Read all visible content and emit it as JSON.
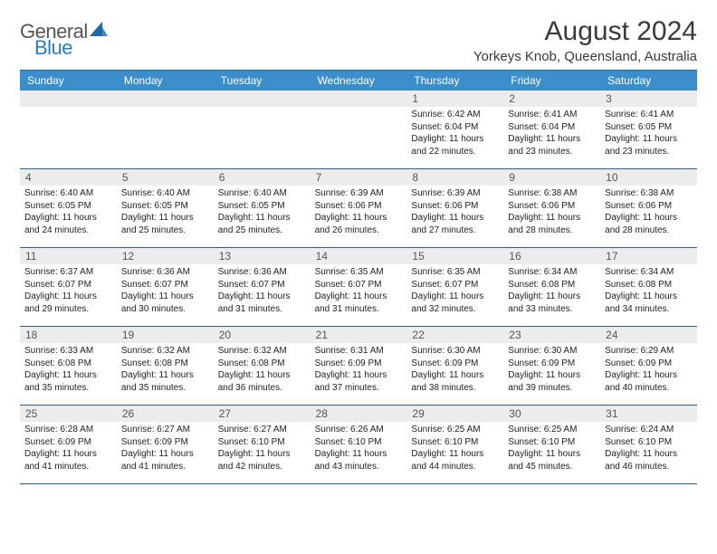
{
  "brand": {
    "word1": "General",
    "word2": "Blue"
  },
  "title": "August 2024",
  "location": "Yorkeys Knob, Queensland, Australia",
  "colors": {
    "accent": "#3b8dcb",
    "border": "#2d5f8b",
    "daynum_bg": "#ececec",
    "text": "#222222",
    "logo_blue": "#2a7ac0"
  },
  "typography": {
    "title_fontsize": 30,
    "location_fontsize": 15,
    "dayhead_fontsize": 12,
    "cell_fontsize": 10
  },
  "day_labels": [
    "Sunday",
    "Monday",
    "Tuesday",
    "Wednesday",
    "Thursday",
    "Friday",
    "Saturday"
  ],
  "weeks": [
    [
      {
        "day": ""
      },
      {
        "day": ""
      },
      {
        "day": ""
      },
      {
        "day": ""
      },
      {
        "day": "1",
        "sunrise": "Sunrise: 6:42 AM",
        "sunset": "Sunset: 6:04 PM",
        "dl1": "Daylight: 11 hours",
        "dl2": "and 22 minutes."
      },
      {
        "day": "2",
        "sunrise": "Sunrise: 6:41 AM",
        "sunset": "Sunset: 6:04 PM",
        "dl1": "Daylight: 11 hours",
        "dl2": "and 23 minutes."
      },
      {
        "day": "3",
        "sunrise": "Sunrise: 6:41 AM",
        "sunset": "Sunset: 6:05 PM",
        "dl1": "Daylight: 11 hours",
        "dl2": "and 23 minutes."
      }
    ],
    [
      {
        "day": "4",
        "sunrise": "Sunrise: 6:40 AM",
        "sunset": "Sunset: 6:05 PM",
        "dl1": "Daylight: 11 hours",
        "dl2": "and 24 minutes."
      },
      {
        "day": "5",
        "sunrise": "Sunrise: 6:40 AM",
        "sunset": "Sunset: 6:05 PM",
        "dl1": "Daylight: 11 hours",
        "dl2": "and 25 minutes."
      },
      {
        "day": "6",
        "sunrise": "Sunrise: 6:40 AM",
        "sunset": "Sunset: 6:05 PM",
        "dl1": "Daylight: 11 hours",
        "dl2": "and 25 minutes."
      },
      {
        "day": "7",
        "sunrise": "Sunrise: 6:39 AM",
        "sunset": "Sunset: 6:06 PM",
        "dl1": "Daylight: 11 hours",
        "dl2": "and 26 minutes."
      },
      {
        "day": "8",
        "sunrise": "Sunrise: 6:39 AM",
        "sunset": "Sunset: 6:06 PM",
        "dl1": "Daylight: 11 hours",
        "dl2": "and 27 minutes."
      },
      {
        "day": "9",
        "sunrise": "Sunrise: 6:38 AM",
        "sunset": "Sunset: 6:06 PM",
        "dl1": "Daylight: 11 hours",
        "dl2": "and 28 minutes."
      },
      {
        "day": "10",
        "sunrise": "Sunrise: 6:38 AM",
        "sunset": "Sunset: 6:06 PM",
        "dl1": "Daylight: 11 hours",
        "dl2": "and 28 minutes."
      }
    ],
    [
      {
        "day": "11",
        "sunrise": "Sunrise: 6:37 AM",
        "sunset": "Sunset: 6:07 PM",
        "dl1": "Daylight: 11 hours",
        "dl2": "and 29 minutes."
      },
      {
        "day": "12",
        "sunrise": "Sunrise: 6:36 AM",
        "sunset": "Sunset: 6:07 PM",
        "dl1": "Daylight: 11 hours",
        "dl2": "and 30 minutes."
      },
      {
        "day": "13",
        "sunrise": "Sunrise: 6:36 AM",
        "sunset": "Sunset: 6:07 PM",
        "dl1": "Daylight: 11 hours",
        "dl2": "and 31 minutes."
      },
      {
        "day": "14",
        "sunrise": "Sunrise: 6:35 AM",
        "sunset": "Sunset: 6:07 PM",
        "dl1": "Daylight: 11 hours",
        "dl2": "and 31 minutes."
      },
      {
        "day": "15",
        "sunrise": "Sunrise: 6:35 AM",
        "sunset": "Sunset: 6:07 PM",
        "dl1": "Daylight: 11 hours",
        "dl2": "and 32 minutes."
      },
      {
        "day": "16",
        "sunrise": "Sunrise: 6:34 AM",
        "sunset": "Sunset: 6:08 PM",
        "dl1": "Daylight: 11 hours",
        "dl2": "and 33 minutes."
      },
      {
        "day": "17",
        "sunrise": "Sunrise: 6:34 AM",
        "sunset": "Sunset: 6:08 PM",
        "dl1": "Daylight: 11 hours",
        "dl2": "and 34 minutes."
      }
    ],
    [
      {
        "day": "18",
        "sunrise": "Sunrise: 6:33 AM",
        "sunset": "Sunset: 6:08 PM",
        "dl1": "Daylight: 11 hours",
        "dl2": "and 35 minutes."
      },
      {
        "day": "19",
        "sunrise": "Sunrise: 6:32 AM",
        "sunset": "Sunset: 6:08 PM",
        "dl1": "Daylight: 11 hours",
        "dl2": "and 35 minutes."
      },
      {
        "day": "20",
        "sunrise": "Sunrise: 6:32 AM",
        "sunset": "Sunset: 6:08 PM",
        "dl1": "Daylight: 11 hours",
        "dl2": "and 36 minutes."
      },
      {
        "day": "21",
        "sunrise": "Sunrise: 6:31 AM",
        "sunset": "Sunset: 6:09 PM",
        "dl1": "Daylight: 11 hours",
        "dl2": "and 37 minutes."
      },
      {
        "day": "22",
        "sunrise": "Sunrise: 6:30 AM",
        "sunset": "Sunset: 6:09 PM",
        "dl1": "Daylight: 11 hours",
        "dl2": "and 38 minutes."
      },
      {
        "day": "23",
        "sunrise": "Sunrise: 6:30 AM",
        "sunset": "Sunset: 6:09 PM",
        "dl1": "Daylight: 11 hours",
        "dl2": "and 39 minutes."
      },
      {
        "day": "24",
        "sunrise": "Sunrise: 6:29 AM",
        "sunset": "Sunset: 6:09 PM",
        "dl1": "Daylight: 11 hours",
        "dl2": "and 40 minutes."
      }
    ],
    [
      {
        "day": "25",
        "sunrise": "Sunrise: 6:28 AM",
        "sunset": "Sunset: 6:09 PM",
        "dl1": "Daylight: 11 hours",
        "dl2": "and 41 minutes."
      },
      {
        "day": "26",
        "sunrise": "Sunrise: 6:27 AM",
        "sunset": "Sunset: 6:09 PM",
        "dl1": "Daylight: 11 hours",
        "dl2": "and 41 minutes."
      },
      {
        "day": "27",
        "sunrise": "Sunrise: 6:27 AM",
        "sunset": "Sunset: 6:10 PM",
        "dl1": "Daylight: 11 hours",
        "dl2": "and 42 minutes."
      },
      {
        "day": "28",
        "sunrise": "Sunrise: 6:26 AM",
        "sunset": "Sunset: 6:10 PM",
        "dl1": "Daylight: 11 hours",
        "dl2": "and 43 minutes."
      },
      {
        "day": "29",
        "sunrise": "Sunrise: 6:25 AM",
        "sunset": "Sunset: 6:10 PM",
        "dl1": "Daylight: 11 hours",
        "dl2": "and 44 minutes."
      },
      {
        "day": "30",
        "sunrise": "Sunrise: 6:25 AM",
        "sunset": "Sunset: 6:10 PM",
        "dl1": "Daylight: 11 hours",
        "dl2": "and 45 minutes."
      },
      {
        "day": "31",
        "sunrise": "Sunrise: 6:24 AM",
        "sunset": "Sunset: 6:10 PM",
        "dl1": "Daylight: 11 hours",
        "dl2": "and 46 minutes."
      }
    ]
  ]
}
